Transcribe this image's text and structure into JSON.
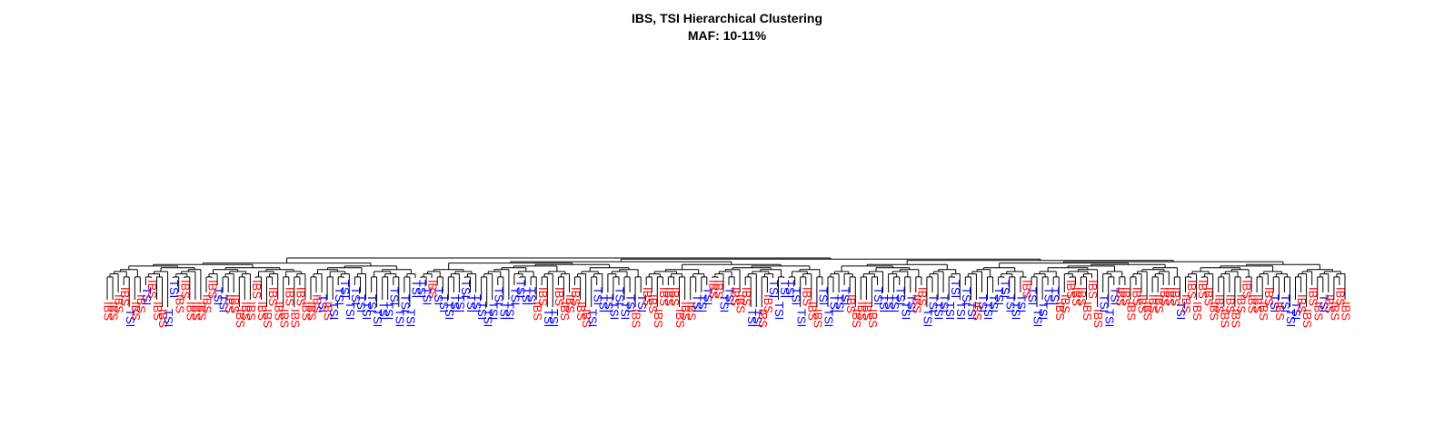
{
  "chart_data": {
    "type": "dendrogram",
    "title": "IBS, TSI Hierarchical Clustering",
    "subtitle": "MAF: 10-11%",
    "label_colors": {
      "IBS": "#ff0000",
      "TSI": "#0000ff"
    },
    "link_color": "#000000",
    "leaves": [
      "IBS",
      "IBS",
      "IBS",
      "IBS",
      "TSI",
      "IBS",
      "IBS",
      "TSI",
      "IBS",
      "IBS",
      "IBS",
      "TSI",
      "TSI",
      "IBS",
      "IBS",
      "IBS",
      "IBS",
      "IBS",
      "IBS",
      "IBS",
      "TSI",
      "TSI",
      "IBS",
      "IBS",
      "IBS",
      "IBS",
      "IBS",
      "IBS",
      "IBS",
      "IBS",
      "IBS",
      "IBS",
      "IBS",
      "IBS",
      "IBS",
      "IBS",
      "IBS",
      "IBS",
      "IBS",
      "TSI",
      "IBS",
      "TSI",
      "TSI",
      "TSI",
      "TSI",
      "TSI",
      "TSI",
      "TSI",
      "TSI",
      "TSI",
      "TSI",
      "TSI",
      "TSI",
      "TSI",
      "TSI",
      "TSI",
      "TSI",
      "TSI",
      "TSI",
      "IBS",
      "TSI",
      "TSI",
      "TSI",
      "TSI",
      "TSI",
      "TSI",
      "TSI",
      "TSI",
      "TSI",
      "TSI",
      "TSI",
      "TSI",
      "TSI",
      "TSI",
      "TSI",
      "TSI",
      "TSI",
      "TSI",
      "IBS",
      "IBS",
      "TSI",
      "TSI",
      "IBS",
      "IBS",
      "IBS",
      "IBS",
      "IBS",
      "IBS",
      "TSI",
      "TSI",
      "TSI",
      "TSI",
      "TSI",
      "TSI",
      "TSI",
      "TSI",
      "IBS",
      "TSI",
      "IBS",
      "IBS",
      "IBS",
      "IBS",
      "IBS",
      "IBS",
      "IBS",
      "IBS",
      "IBS",
      "TSI",
      "TSI",
      "TSI",
      "IBS",
      "IBS",
      "TSI",
      "TSI",
      "IBS",
      "IBS",
      "IBS",
      "TSI",
      "TSI",
      "IBS",
      "IBS",
      "TSI",
      "TSI",
      "TSI",
      "TSI",
      "TSI",
      "TSI",
      "IBS",
      "IBS",
      "IBS",
      "TSI",
      "TSI",
      "TSI",
      "TSI",
      "TSI",
      "IBS",
      "IBS",
      "IBS",
      "IBS",
      "IBS",
      "TSI",
      "TSI",
      "TSI",
      "TSI",
      "TSI",
      "TSI",
      "TSI",
      "IBS",
      "IBS",
      "TSI",
      "TSI",
      "TSI",
      "TSI",
      "TSI",
      "TSI",
      "TSI",
      "TSI",
      "TSI",
      "IBS",
      "TSI",
      "TSI",
      "TSI",
      "TSI",
      "TSI",
      "TSI",
      "TSI",
      "TSI",
      "IBS",
      "TSI",
      "TSI",
      "TSI",
      "TSI",
      "TSI",
      "IBS",
      "IBS",
      "IBS",
      "IBS",
      "IBS",
      "IBS",
      "IBS",
      "IBS",
      "TSI",
      "TSI",
      "TSI",
      "IBS",
      "IBS",
      "IBS",
      "IBS",
      "IBS",
      "IBS",
      "IBS",
      "IBS",
      "IBS",
      "IBS",
      "IBS",
      "TSI",
      "IBS",
      "IBS",
      "IBS",
      "IBS",
      "IBS",
      "IBS",
      "IBS",
      "IBS",
      "IBS",
      "IBS",
      "IBS",
      "IBS",
      "IBS",
      "IBS",
      "IBS",
      "IBS",
      "TSI",
      "IBS",
      "TSI",
      "TSI",
      "TSI",
      "IBS",
      "IBS",
      "IBS",
      "IBS",
      "TSI",
      "IBS",
      "IBS",
      "IBS",
      "IBS"
    ]
  }
}
